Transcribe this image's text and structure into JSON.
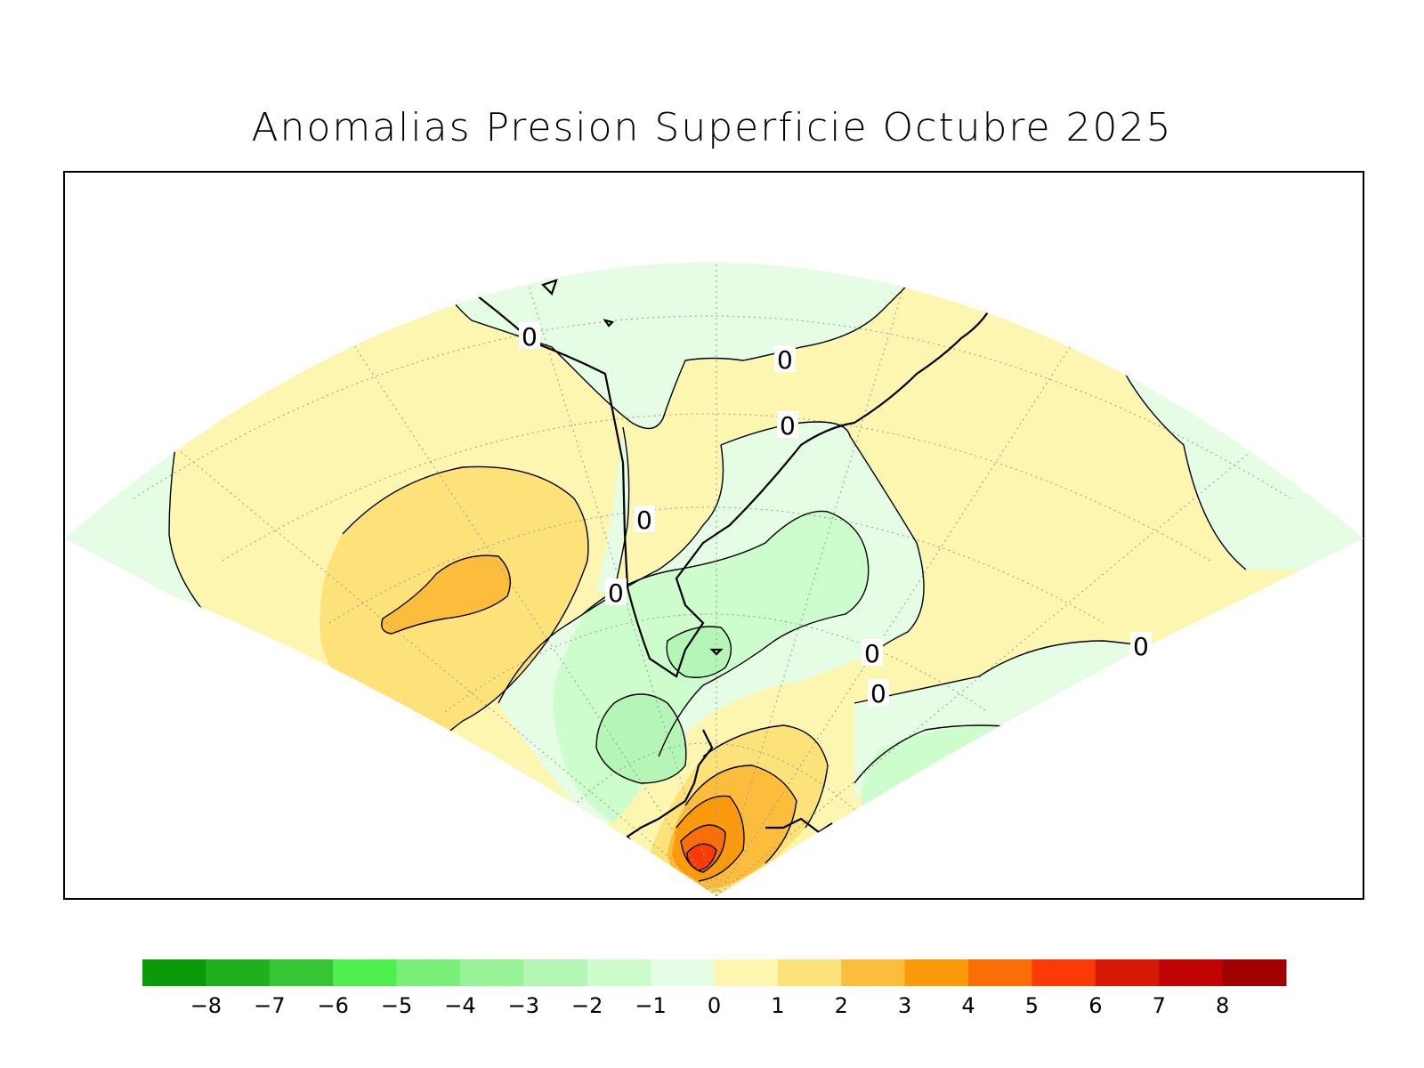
{
  "title": "Anomalias Presion Superficie Octubre 2025",
  "contour_labels": [
    "0",
    "0",
    "0",
    "0",
    "0",
    "0",
    "0",
    "0"
  ],
  "colorbar": {
    "colors": [
      "#0a9a0a",
      "#1fb01f",
      "#35c535",
      "#4df04d",
      "#78f078",
      "#98f298",
      "#b5f5b5",
      "#cdfccd",
      "#e5fde5",
      "#fdf6b0",
      "#fde27a",
      "#fcbc3c",
      "#fb9a0a",
      "#fb6d06",
      "#fb3a05",
      "#d61a05",
      "#c00303",
      "#a00101"
    ],
    "tick_labels": [
      "−8",
      "−7",
      "−6",
      "−5",
      "−4",
      "−3",
      "−2",
      "−1",
      "0",
      "1",
      "2",
      "3",
      "4",
      "5",
      "6",
      "7",
      "8"
    ]
  }
}
